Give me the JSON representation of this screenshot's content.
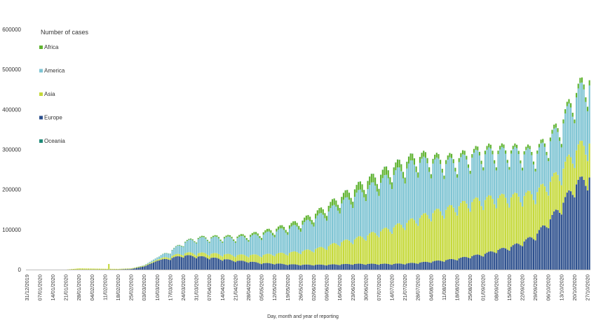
{
  "chart_data": {
    "type": "bar",
    "stacked": true,
    "xlabel": "Day, month and year of reporting",
    "ylabel": "",
    "ylim": [
      0,
      600000
    ],
    "yticks": [
      "0",
      "100000",
      "200000",
      "300000",
      "400000",
      "500000",
      "600000"
    ],
    "legend_title": "Number of cases",
    "legend_position": "top-left",
    "x_start": "31/12/2019",
    "x_end": "28/10/2020",
    "xtick_labels": [
      "31/12/2019",
      "07/01/2020",
      "14/01/2020",
      "21/01/2020",
      "28/01/2020",
      "04/02/2020",
      "11/02/2020",
      "18/02/2020",
      "25/02/2020",
      "03/03/2020",
      "10/03/2020",
      "17/03/2020",
      "24/03/2020",
      "31/03/2020",
      "07/04/2020",
      "14/04/2020",
      "21/04/2020",
      "28/04/2020",
      "05/05/2020",
      "12/05/2020",
      "19/05/2020",
      "26/05/2020",
      "02/06/2020",
      "09/06/2020",
      "16/06/2020",
      "23/06/2020",
      "30/06/2020",
      "07/07/2020",
      "14/07/2020",
      "21/07/2020",
      "28/07/2020",
      "04/08/2020",
      "11/08/2020",
      "18/08/2020",
      "25/08/2020",
      "01/09/2020",
      "08/09/2020",
      "15/09/2020",
      "22/09/2020",
      "29/09/2020",
      "06/10/2020",
      "13/10/2020",
      "20/10/2020",
      "27/10/2020"
    ],
    "series": [
      {
        "name": "Europe",
        "color": "#2b4e8c",
        "week_values": [
          0,
          0,
          0,
          0,
          0,
          50,
          100,
          300,
          1500,
          8000,
          22000,
          28000,
          35000,
          33000,
          30000,
          26000,
          22000,
          20000,
          16000,
          15000,
          13000,
          12000,
          12000,
          12000,
          13000,
          14000,
          14000,
          14000,
          14000,
          15000,
          17000,
          20000,
          23000,
          27000,
          33000,
          38000,
          48000,
          55000,
          68000,
          85000,
          120000,
          160000,
          210000,
          230000
        ]
      },
      {
        "name": "Asia",
        "color": "#c5d93a",
        "week_values": [
          0,
          0,
          0,
          0,
          3000,
          2500,
          2000,
          1500,
          1500,
          2000,
          3000,
          5000,
          6000,
          8000,
          10000,
          12000,
          14000,
          16000,
          20000,
          24000,
          28000,
          33000,
          38000,
          45000,
          55000,
          60000,
          70000,
          80000,
          90000,
          100000,
          110000,
          120000,
          125000,
          130000,
          135000,
          135000,
          130000,
          125000,
          115000,
          105000,
          95000,
          85000,
          85000,
          85000
        ]
      },
      {
        "name": "America",
        "color": "#7ec4d3",
        "week_values": [
          0,
          0,
          0,
          0,
          0,
          0,
          0,
          0,
          100,
          1000,
          5000,
          12000,
          25000,
          35000,
          38000,
          40000,
          42000,
          45000,
          50000,
          55000,
          60000,
          65000,
          75000,
          85000,
          95000,
          105000,
          115000,
          120000,
          130000,
          135000,
          140000,
          125000,
          115000,
          110000,
          110000,
          115000,
          110000,
          110000,
          105000,
          95000,
          100000,
          110000,
          130000,
          145000
        ]
      },
      {
        "name": "Africa",
        "color": "#5fb32f",
        "week_values": [
          0,
          0,
          0,
          0,
          0,
          0,
          0,
          0,
          0,
          50,
          300,
          700,
          1500,
          2500,
          3000,
          3500,
          4000,
          5000,
          6000,
          7000,
          8000,
          10000,
          12000,
          14000,
          16000,
          18000,
          20000,
          20000,
          19000,
          17000,
          15000,
          12000,
          10000,
          10000,
          9000,
          9000,
          9000,
          8000,
          8000,
          8000,
          9000,
          10000,
          11000,
          13000
        ]
      },
      {
        "name": "Oceania",
        "color": "#1f8a78",
        "week_values": [
          0,
          0,
          0,
          0,
          0,
          0,
          0,
          0,
          0,
          20,
          100,
          300,
          400,
          200,
          50,
          20,
          10,
          10,
          10,
          10,
          10,
          10,
          20,
          30,
          200,
          300,
          400,
          500,
          500,
          400,
          300,
          200,
          100,
          50,
          30,
          20,
          20,
          20,
          20,
          20,
          20,
          20,
          20,
          20
        ]
      }
    ]
  }
}
